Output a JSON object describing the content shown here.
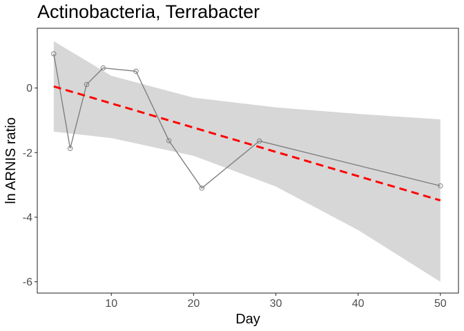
{
  "chart_data": {
    "type": "line",
    "title": "Actinobacteria, Terrabacter",
    "xlabel": "Day",
    "ylabel": "ln ARNIS ratio",
    "xlim": [
      1,
      52.2
    ],
    "ylim": [
      -6.35,
      1.85
    ],
    "xticks": [
      10,
      20,
      30,
      40,
      50
    ],
    "yticks": [
      0,
      -2,
      -4,
      -6
    ],
    "xtick_labels": [
      "10",
      "20",
      "30",
      "40",
      "50"
    ],
    "ytick_labels": [
      "0",
      "-2",
      "-4",
      "-6"
    ],
    "grid": false,
    "legend": "none",
    "series": [
      {
        "kind": "observed",
        "x": [
          3,
          5,
          7,
          9,
          13,
          17,
          21,
          28,
          50
        ],
        "y": [
          1.06,
          -1.87,
          0.11,
          0.62,
          0.52,
          -1.63,
          -3.1,
          -1.64,
          -3.03
        ],
        "color": "#7f7f7f",
        "marker": "open-circle"
      },
      {
        "kind": "linear-fit",
        "x": [
          3,
          50
        ],
        "y": [
          0.05,
          -3.48
        ],
        "color": "#ff0000",
        "style": "dashed"
      }
    ],
    "confidence_band": {
      "x": [
        3,
        10,
        20,
        30,
        40,
        50
      ],
      "lower": [
        -1.35,
        -1.55,
        -2.1,
        -3.05,
        -4.4,
        -6.0
      ],
      "upper": [
        1.45,
        0.38,
        -0.3,
        -0.6,
        -0.8,
        -0.97
      ],
      "color": "#d7d7d7"
    }
  }
}
